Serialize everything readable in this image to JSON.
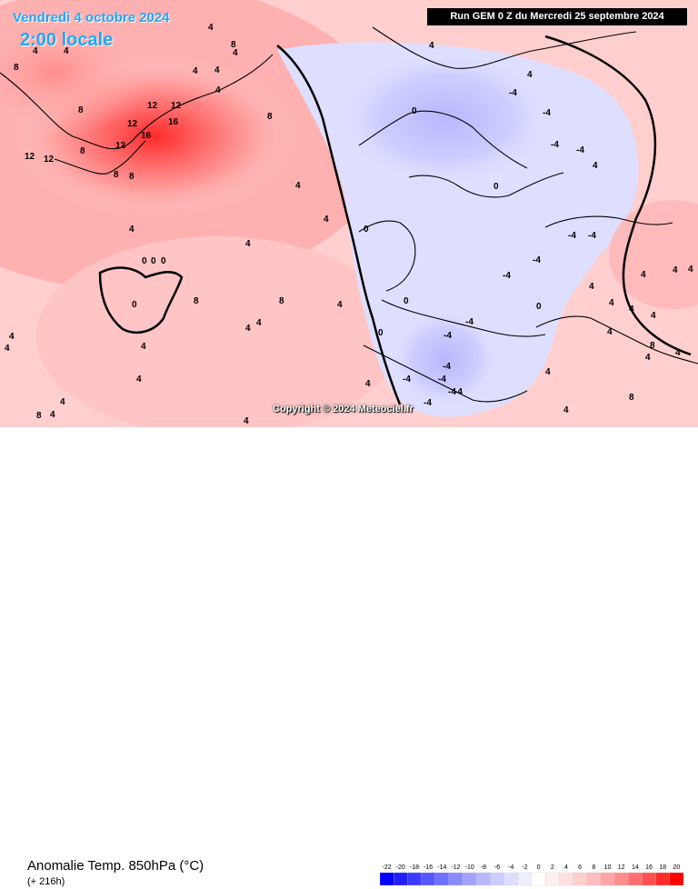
{
  "header": {
    "date": "Vendredi 4 octobre 2024",
    "local_time": "2:00 locale",
    "run": "Run GEM 0 Z du Mercredi 25 septembre 2024"
  },
  "copyright": "Copyright © 2024 Meteociel.fr",
  "footer": {
    "variable": "Anomalie Temp. 850hPa (°C)",
    "range": "(+ 216h)"
  },
  "legend": {
    "ticks": [
      "-22",
      "-20",
      "-18",
      "-16",
      "-14",
      "-12",
      "-10",
      "-8",
      "-6",
      "-4",
      "-2",
      "0",
      "2",
      "4",
      "6",
      "8",
      "10",
      "12",
      "14",
      "16",
      "18",
      "20"
    ],
    "colors": [
      "#0000ff",
      "#1f1fff",
      "#3b3bff",
      "#5656ff",
      "#7070ff",
      "#8a8aff",
      "#a2a2ff",
      "#b8b8ff",
      "#cccdff",
      "#dedfff",
      "#eeeeff",
      "#ffffff",
      "#fff0f0",
      "#ffe0e0",
      "#ffcfcf",
      "#ffbcbc",
      "#ffa5a5",
      "#ff8c8c",
      "#ff6f6f",
      "#ff4f4f",
      "#ff2a2a",
      "#ff0000"
    ]
  },
  "anomaly_labels": [
    "4",
    "4",
    "8",
    "4",
    "8",
    "4",
    "4",
    "4",
    "4",
    "8",
    "12",
    "12",
    "16",
    "12",
    "16",
    "12",
    "12",
    "12",
    "8",
    "8",
    "8",
    "8",
    "4",
    "4",
    "4",
    "4",
    "0",
    "0",
    "0",
    "0",
    "4",
    "8",
    "4",
    "4",
    "4",
    "8",
    "4",
    "4",
    "8",
    "4",
    "4",
    "4",
    "4",
    "4",
    "4",
    "0",
    "-4",
    "-4",
    "-4",
    "-4",
    "-4",
    "-4",
    "-4",
    "-4",
    "-4",
    "-4",
    "-4",
    "-4",
    "-4",
    "-4",
    "-4",
    "-4",
    "0",
    "0",
    "0",
    "0",
    "4",
    "4",
    "4",
    "4",
    "0",
    "4",
    "4",
    "4",
    "4",
    "4",
    "4",
    "8",
    "4",
    "8",
    "4",
    "4",
    "4"
  ]
}
